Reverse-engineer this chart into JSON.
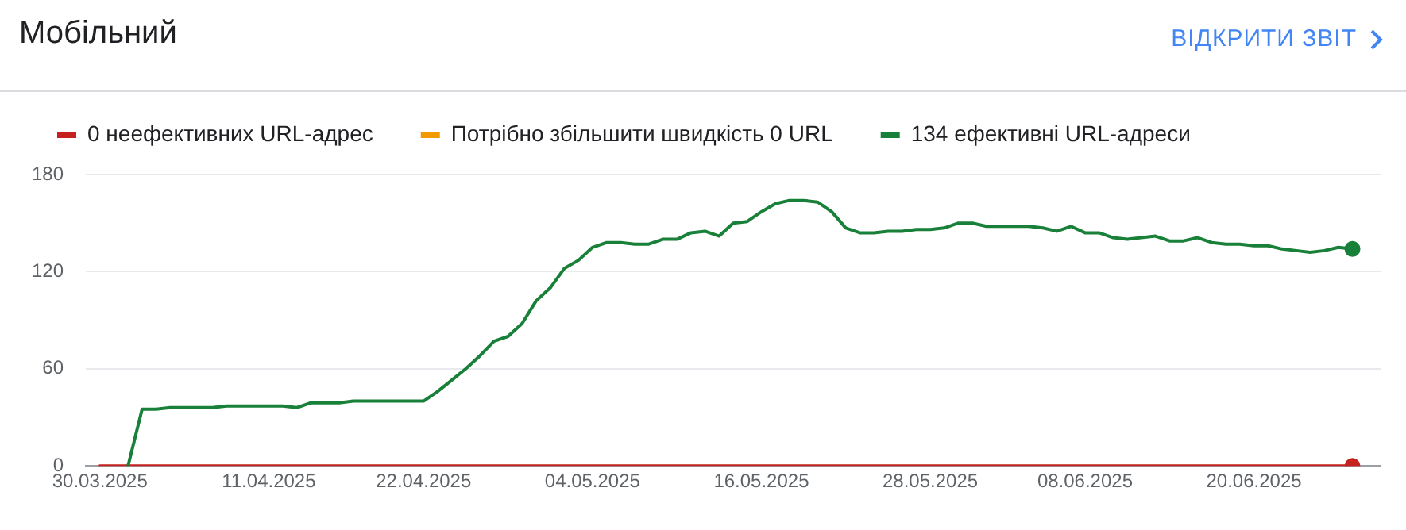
{
  "chart_data": {
    "type": "line",
    "title": "Мобільний",
    "annotations": [
      "ВІДКРИТИ ЗВІТ"
    ],
    "x": [
      "2025-03-30",
      "2025-03-31",
      "2025-04-01",
      "2025-04-02",
      "2025-04-03",
      "2025-04-04",
      "2025-04-05",
      "2025-04-06",
      "2025-04-07",
      "2025-04-08",
      "2025-04-09",
      "2025-04-10",
      "2025-04-11",
      "2025-04-12",
      "2025-04-13",
      "2025-04-14",
      "2025-04-15",
      "2025-04-16",
      "2025-04-17",
      "2025-04-18",
      "2025-04-19",
      "2025-04-20",
      "2025-04-21",
      "2025-04-22",
      "2025-04-23",
      "2025-04-24",
      "2025-04-25",
      "2025-04-26",
      "2025-04-27",
      "2025-04-28",
      "2025-04-29",
      "2025-04-30",
      "2025-05-01",
      "2025-05-02",
      "2025-05-03",
      "2025-05-04",
      "2025-05-05",
      "2025-05-06",
      "2025-05-07",
      "2025-05-08",
      "2025-05-09",
      "2025-05-10",
      "2025-05-11",
      "2025-05-12",
      "2025-05-13",
      "2025-05-14",
      "2025-05-15",
      "2025-05-16",
      "2025-05-17",
      "2025-05-18",
      "2025-05-19",
      "2025-05-20",
      "2025-05-21",
      "2025-05-22",
      "2025-05-23",
      "2025-05-24",
      "2025-05-25",
      "2025-05-26",
      "2025-05-27",
      "2025-05-28",
      "2025-05-29",
      "2025-05-30",
      "2025-05-31",
      "2025-06-01",
      "2025-06-02",
      "2025-06-03",
      "2025-06-04",
      "2025-06-05",
      "2025-06-06",
      "2025-06-07",
      "2025-06-08",
      "2025-06-09",
      "2025-06-10",
      "2025-06-11",
      "2025-06-12",
      "2025-06-13",
      "2025-06-14",
      "2025-06-15",
      "2025-06-16",
      "2025-06-17",
      "2025-06-18",
      "2025-06-19",
      "2025-06-20",
      "2025-06-21",
      "2025-06-22",
      "2025-06-23",
      "2025-06-24",
      "2025-06-25",
      "2025-06-26",
      "2025-06-27"
    ],
    "series": [
      {
        "name": "0 неефективних URL-адрес",
        "color": "#c5221f",
        "values": [
          0,
          0,
          0,
          0,
          0,
          0,
          0,
          0,
          0,
          0,
          0,
          0,
          0,
          0,
          0,
          0,
          0,
          0,
          0,
          0,
          0,
          0,
          0,
          0,
          0,
          0,
          0,
          0,
          0,
          0,
          0,
          0,
          0,
          0,
          0,
          0,
          0,
          0,
          0,
          0,
          0,
          0,
          0,
          0,
          0,
          0,
          0,
          0,
          0,
          0,
          0,
          0,
          0,
          0,
          0,
          0,
          0,
          0,
          0,
          0,
          0,
          0,
          0,
          0,
          0,
          0,
          0,
          0,
          0,
          0,
          0,
          0,
          0,
          0,
          0,
          0,
          0,
          0,
          0,
          0,
          0,
          0,
          0,
          0,
          0,
          0,
          0,
          0,
          0,
          0
        ]
      },
      {
        "name": "Потрібно збільшити швидкість 0 URL",
        "color": "#f29900",
        "values": [
          null,
          null,
          null,
          null,
          null,
          null,
          null,
          null,
          null,
          null,
          null,
          null,
          null,
          null,
          null,
          null,
          null,
          null,
          null,
          null,
          null,
          null,
          null,
          null,
          null,
          null,
          null,
          null,
          null,
          null,
          null,
          null,
          null,
          null,
          null,
          null,
          null,
          null,
          null,
          null,
          null,
          null,
          null,
          null,
          null,
          null,
          null,
          null,
          null,
          null,
          null,
          null,
          null,
          null,
          null,
          null,
          null,
          null,
          null,
          null,
          null,
          null,
          null,
          null,
          null,
          null,
          null,
          null,
          null,
          null,
          null,
          null,
          null,
          null,
          null,
          null,
          null,
          null,
          null,
          null,
          null,
          null,
          null,
          null,
          null,
          null,
          null,
          null,
          null,
          null
        ]
      },
      {
        "name": "134 ефективні URL-адреси",
        "color": "#188038",
        "values": [
          null,
          null,
          0,
          35,
          35,
          36,
          36,
          36,
          36,
          37,
          37,
          37,
          37,
          37,
          36,
          39,
          39,
          39,
          40,
          40,
          40,
          40,
          40,
          40,
          46,
          53,
          60,
          68,
          77,
          80,
          88,
          102,
          110,
          122,
          127,
          135,
          138,
          138,
          137,
          137,
          140,
          140,
          144,
          145,
          142,
          150,
          151,
          157,
          162,
          164,
          164,
          163,
          157,
          147,
          144,
          144,
          145,
          145,
          146,
          146,
          147,
          150,
          150,
          148,
          148,
          148,
          148,
          147,
          145,
          148,
          144,
          144,
          141,
          140,
          141,
          142,
          139,
          139,
          141,
          138,
          137,
          137,
          136,
          136,
          134,
          133,
          132,
          133,
          135,
          134
        ]
      }
    ],
    "xlim": [
      "2025-03-29",
      "2025-06-29"
    ],
    "xticks": [
      {
        "value": "2025-03-30",
        "label": "30.03.2025"
      },
      {
        "value": "2025-04-11",
        "label": "11.04.2025"
      },
      {
        "value": "2025-04-22",
        "label": "22.04.2025"
      },
      {
        "value": "2025-05-04",
        "label": "04.05.2025"
      },
      {
        "value": "2025-05-16",
        "label": "16.05.2025"
      },
      {
        "value": "2025-05-28",
        "label": "28.05.2025"
      },
      {
        "value": "2025-06-08",
        "label": "08.06.2025"
      },
      {
        "value": "2025-06-20",
        "label": "20.06.2025"
      }
    ],
    "ylim": [
      0,
      180
    ],
    "yticks": [
      0,
      60,
      120,
      180
    ],
    "grid": "y",
    "legend": "top left"
  }
}
